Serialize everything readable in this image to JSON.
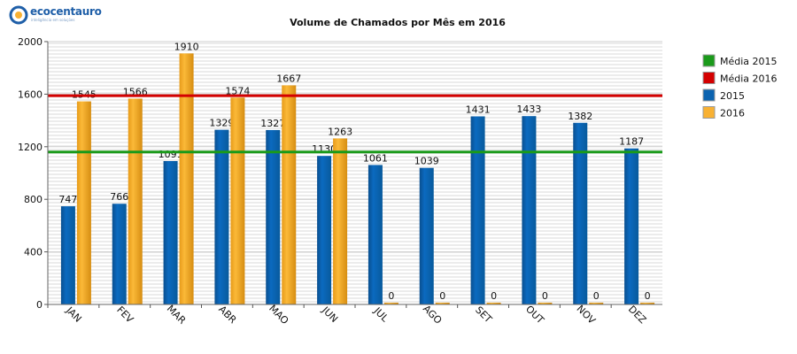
{
  "logo": {
    "brand": "ecocentauro",
    "tagline": "inteligência em soluções"
  },
  "chart_data": {
    "type": "bar",
    "title": "Volume de Chamados por Mês em 2016",
    "categories": [
      "JAN",
      "FEV",
      "MAR",
      "ABR",
      "MAO",
      "JUN",
      "JUL",
      "AGO",
      "SET",
      "OUT",
      "NOV",
      "DEZ"
    ],
    "series": [
      {
        "name": "2015",
        "color": "#0b63b0",
        "values": [
          747,
          766,
          1091,
          1329,
          1327,
          1130,
          1061,
          1039,
          1431,
          1433,
          1382,
          1187
        ],
        "labels": [
          "747",
          "766",
          "1091",
          "1329",
          "1327",
          "1130",
          "1061",
          "1039",
          "1431",
          "1433",
          "1382",
          "1187"
        ]
      },
      {
        "name": "2016",
        "color": "#f8b133",
        "values": [
          1545,
          1566,
          1910,
          1574,
          1667,
          1263,
          0,
          0,
          0,
          0,
          0,
          0
        ],
        "labels": [
          "1545",
          "1566",
          "1910",
          "1574",
          "1667",
          "1263",
          "0",
          "0",
          "0",
          "0",
          "0",
          "0"
        ]
      }
    ],
    "reference_lines": [
      {
        "name": "Média 2015",
        "color": "#1a9a1a",
        "value": 1160
      },
      {
        "name": "Média 2016",
        "color": "#d40000",
        "value": 1588
      }
    ],
    "ylim": [
      0,
      2000
    ],
    "yticks": [
      "0",
      "400",
      "800",
      "1200",
      "1600",
      "2000"
    ],
    "legend_position": "right",
    "grid": true,
    "legend": [
      "Média 2015",
      "Média 2016",
      "2015",
      "2016"
    ]
  }
}
